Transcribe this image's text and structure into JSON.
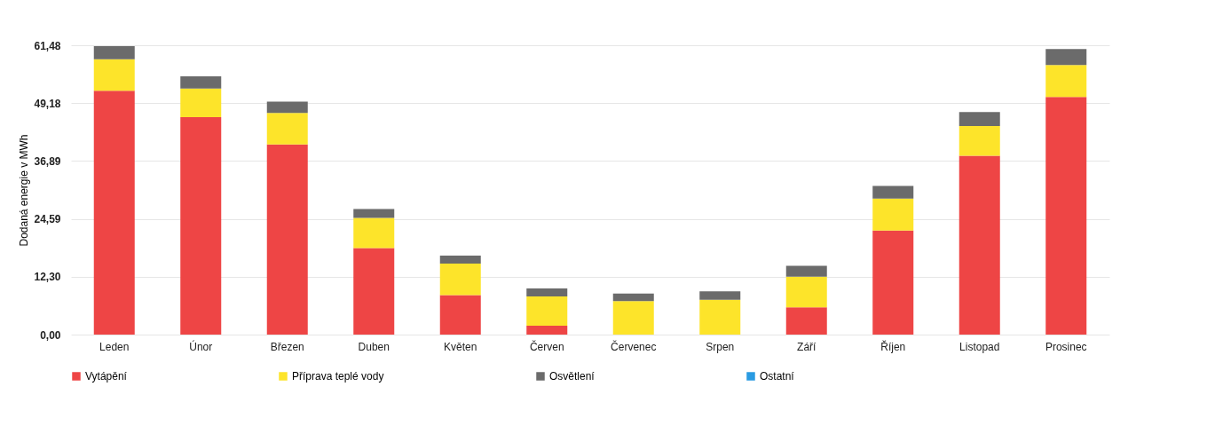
{
  "chart_data": {
    "type": "bar",
    "stacked": true,
    "ylabel": "Dodaná energie v MWh",
    "categories": [
      "Leden",
      "Únor",
      "Březen",
      "Duben",
      "Květen",
      "Červen",
      "Červenec",
      "Srpen",
      "Září",
      "Říjen",
      "Listopad",
      "Prosinec"
    ],
    "series": [
      {
        "name": "Vytápění",
        "color": "#ee4545",
        "values": [
          51.8,
          46.2,
          40.4,
          18.4,
          8.4,
          1.9,
          0,
          0,
          5.8,
          22.1,
          38.0,
          50.5
        ]
      },
      {
        "name": "Příprava teplé vody",
        "color": "#fde42a",
        "values": [
          6.7,
          6.1,
          6.7,
          6.4,
          6.7,
          6.2,
          7.1,
          7.4,
          6.5,
          6.8,
          6.3,
          6.8
        ]
      },
      {
        "name": "Osvětlení",
        "color": "#6b6b6b",
        "values": [
          2.8,
          2.6,
          2.4,
          1.9,
          1.7,
          1.7,
          1.6,
          1.8,
          2.3,
          2.7,
          3.0,
          3.4
        ]
      },
      {
        "name": "Ostatní",
        "color": "#2a9be2",
        "values": [
          0,
          0,
          0,
          0,
          0,
          0,
          0,
          0,
          0,
          0,
          0,
          0
        ]
      }
    ],
    "ylim": [
      0,
      61.48
    ],
    "yticks": [
      {
        "value": 0,
        "label": "0,00"
      },
      {
        "value": 12.3,
        "label": "12,30"
      },
      {
        "value": 24.59,
        "label": "24,59"
      },
      {
        "value": 36.89,
        "label": "36,89"
      },
      {
        "value": 49.18,
        "label": "49,18"
      },
      {
        "value": 61.48,
        "label": "61,48"
      }
    ],
    "grid": "y",
    "legend": "bottom"
  }
}
